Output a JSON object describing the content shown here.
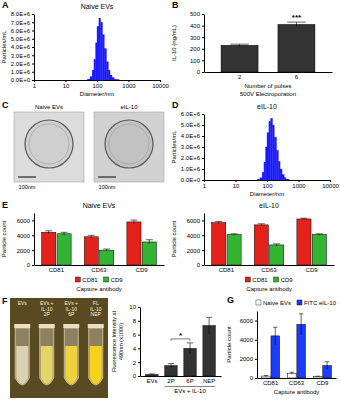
{
  "chart_data": [
    {
      "panel": "A",
      "type": "histogram",
      "title": "Naive EVs",
      "x_label": "Diameter/nm",
      "y_label": "Particles/mL",
      "log": "x",
      "xlim": [
        1,
        10000
      ],
      "xticks": [
        1,
        10,
        100,
        1000,
        10000
      ],
      "ylim": [
        0,
        8000000
      ],
      "yticks": [
        {
          "value": 0,
          "label": "0.0E+0"
        },
        {
          "value": 1000000,
          "label": "1.0E+6"
        },
        {
          "value": 2000000,
          "label": "2.0E+6"
        },
        {
          "value": 3000000,
          "label": "3.0E+6"
        },
        {
          "value": 4000000,
          "label": "4.0E+6"
        },
        {
          "value": 5000000,
          "label": "5.0E+6"
        },
        {
          "value": 6000000,
          "label": "6.0E+6"
        },
        {
          "value": 7000000,
          "label": "7.0E+6"
        },
        {
          "value": 8000000,
          "label": "8.0E+6"
        }
      ],
      "bins": [
        50,
        60,
        70,
        80,
        90,
        100,
        115,
        130,
        150,
        170,
        200,
        230,
        260,
        300,
        350,
        400,
        500
      ],
      "values": [
        100000,
        400000,
        1200000,
        2500000,
        4500000,
        6500000,
        7500000,
        7000000,
        5500000,
        3800000,
        2200000,
        1200000,
        600000,
        300000,
        100000,
        50000
      ],
      "color": "#1a1aff"
    },
    {
      "panel": "B",
      "type": "bar",
      "y_label": "IL-10 (ng/mL)",
      "x_label": "Number of pulses",
      "x_label2": "500V Electroporation",
      "categories": [
        "2",
        "6"
      ],
      "values": [
        230,
        410
      ],
      "errors": [
        10,
        20
      ],
      "ylim": [
        0,
        500
      ],
      "yticks": [
        0,
        100,
        200,
        300,
        400,
        500
      ],
      "color": "#333333",
      "annotations": [
        {
          "text": "***",
          "over": "6"
        }
      ]
    },
    {
      "panel": "D",
      "type": "histogram",
      "title": "eIL-10",
      "x_label": "Diameter/nm",
      "y_label": "Particles/mL",
      "log": "x",
      "xlim": [
        1,
        10000
      ],
      "xticks": [
        1,
        10,
        100,
        1000,
        10000
      ],
      "ylim": [
        0,
        6000000
      ],
      "yticks": [
        {
          "value": 0,
          "label": "0.0E+0"
        },
        {
          "value": 1000000,
          "label": "1.0E+6"
        },
        {
          "value": 2000000,
          "label": "2.0E+6"
        },
        {
          "value": 3000000,
          "label": "3.0E+6"
        },
        {
          "value": 4000000,
          "label": "4.0E+6"
        },
        {
          "value": 5000000,
          "label": "5.0E+6"
        },
        {
          "value": 6000000,
          "label": "6.0E+6"
        }
      ],
      "bins": [
        50,
        60,
        70,
        80,
        90,
        100,
        115,
        130,
        150,
        170,
        200,
        230,
        260,
        300,
        350,
        400,
        500
      ],
      "values": [
        50000,
        200000,
        700000,
        1600000,
        3000000,
        4300000,
        5300000,
        5600000,
        5000000,
        3900000,
        2700000,
        1700000,
        1000000,
        500000,
        200000,
        80000
      ],
      "color": "#1a1aff"
    },
    {
      "panel": "E",
      "type": "bar",
      "title": "Naive EVs",
      "x_label": "Capture antibody",
      "y_label": "Particle count",
      "categories": [
        "CD81",
        "CD63",
        "CD9"
      ],
      "series": [
        {
          "name": "CD81",
          "color": "#e3231b",
          "values": [
            4400,
            3800,
            5800
          ],
          "errors": [
            200,
            200,
            250
          ]
        },
        {
          "name": "CD9",
          "color": "#33b533",
          "values": [
            4200,
            2000,
            3100
          ],
          "errors": [
            200,
            150,
            300
          ]
        }
      ],
      "ylim": [
        0,
        7000
      ],
      "yticks": [
        0,
        2000,
        4000,
        6000
      ],
      "legend": "bottom"
    },
    {
      "type": "bar",
      "title": "eIL-10",
      "x_label": "Capture antibody",
      "y_label": "Particle count",
      "categories": [
        "CD81",
        "CD63",
        "CD9"
      ],
      "series": [
        {
          "name": "CD81",
          "color": "#e3231b",
          "values": [
            5700,
            5400,
            6200
          ],
          "errors": [
            150,
            150,
            100
          ]
        },
        {
          "name": "CD9",
          "color": "#33b533",
          "values": [
            4100,
            2700,
            4100
          ],
          "errors": [
            100,
            150,
            100
          ]
        }
      ],
      "ylim": [
        0,
        7000
      ],
      "yticks": [
        0,
        2000,
        4000,
        6000
      ],
      "legend": "bottom"
    },
    {
      "type": "bar",
      "y_label": "Fluorescence Intensity at 490nm (x1000)",
      "categories": [
        "EVs",
        "2P",
        "6P",
        "NEP"
      ],
      "values": [
        0.2,
        1.5,
        4.0,
        7.3
      ],
      "errors": [
        0.1,
        0.3,
        0.8,
        1.2
      ],
      "ylim": [
        0,
        10
      ],
      "yticks": [
        0,
        2,
        4,
        6,
        8,
        10
      ],
      "color": "#333333",
      "group_label": {
        "text": "EVs + IL-10",
        "from": "2P",
        "to": "NEP"
      },
      "annotations": [
        {
          "text": "*",
          "from": "2P",
          "to": "6P"
        }
      ]
    },
    {
      "panel": "G",
      "type": "bar",
      "x_label": "Capture antibody",
      "y_label": "Particle count",
      "categories": [
        "CD81",
        "CD63",
        "CD9"
      ],
      "series": [
        {
          "name": "Naive EVs",
          "color": "#ffffff",
          "values": [
            200,
            500,
            150
          ],
          "errors": [
            50,
            100,
            40
          ]
        },
        {
          "name": "FITC eIL-10",
          "color": "#1a3cff",
          "values": [
            4400,
            5600,
            1300
          ],
          "errors": [
            900,
            1100,
            400
          ]
        }
      ],
      "ylim": [
        0,
        7000
      ],
      "yticks": [
        0,
        2000,
        4000,
        6000
      ],
      "legend": "top"
    }
  ],
  "images": [
    {
      "panel": "C",
      "captions": [
        "Naive EVs",
        "eIL-10"
      ],
      "scale_bar": "100nm"
    },
    {
      "panel": "F",
      "labels": [
        "EVs",
        "EVs + IL-10 2P",
        "EVs + IL-10 6P",
        "FL IL-10 NEP"
      ]
    }
  ]
}
